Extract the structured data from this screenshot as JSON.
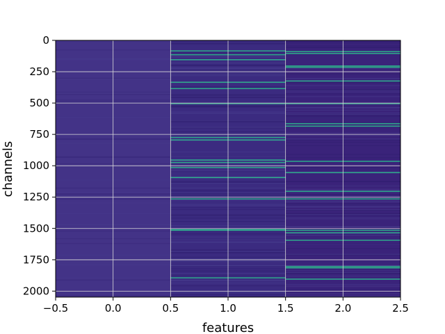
{
  "chart_data": {
    "type": "heatmap",
    "title": "",
    "xlabel": "features",
    "ylabel": "channels",
    "xlim": [
      -0.5,
      2.5
    ],
    "ylim": [
      2048,
      0
    ],
    "x_ticks": [
      -0.5,
      0.0,
      0.5,
      1.0,
      1.5,
      2.0,
      2.5
    ],
    "x_tick_labels": [
      "−0.5",
      "0.0",
      "0.5",
      "1.0",
      "1.5",
      "2.0",
      "2.5"
    ],
    "y_ticks": [
      0,
      250,
      500,
      750,
      1000,
      1250,
      1500,
      1750,
      2000
    ],
    "y_tick_labels": [
      "0",
      "250",
      "500",
      "750",
      "1000",
      "1250",
      "1500",
      "1750",
      "2000"
    ],
    "grid": true,
    "colormap": "viridis",
    "n_channels": 2048,
    "features": [
      0,
      1,
      2
    ],
    "bright_bands": [
      {
        "feature": 1,
        "channels": [
          80,
          110,
          150,
          330,
          380,
          500,
          770,
          790,
          950,
          970,
          1010,
          1090,
          1260,
          1505,
          1510,
          1890
        ]
      },
      {
        "feature": 2,
        "channels": [
          85,
          100,
          200,
          210,
          320,
          500,
          660,
          680,
          960,
          1050,
          1200,
          1260,
          1510,
          1530,
          1590,
          1800,
          1810,
          1900
        ]
      }
    ]
  },
  "colors": {
    "background": "#ffffff",
    "base_feature_0": "#433387",
    "base_feature_1": "#3b2b80",
    "base_feature_2": "#3a237a",
    "highlight": "#2fb48d",
    "grid": "#d9d9d9"
  }
}
